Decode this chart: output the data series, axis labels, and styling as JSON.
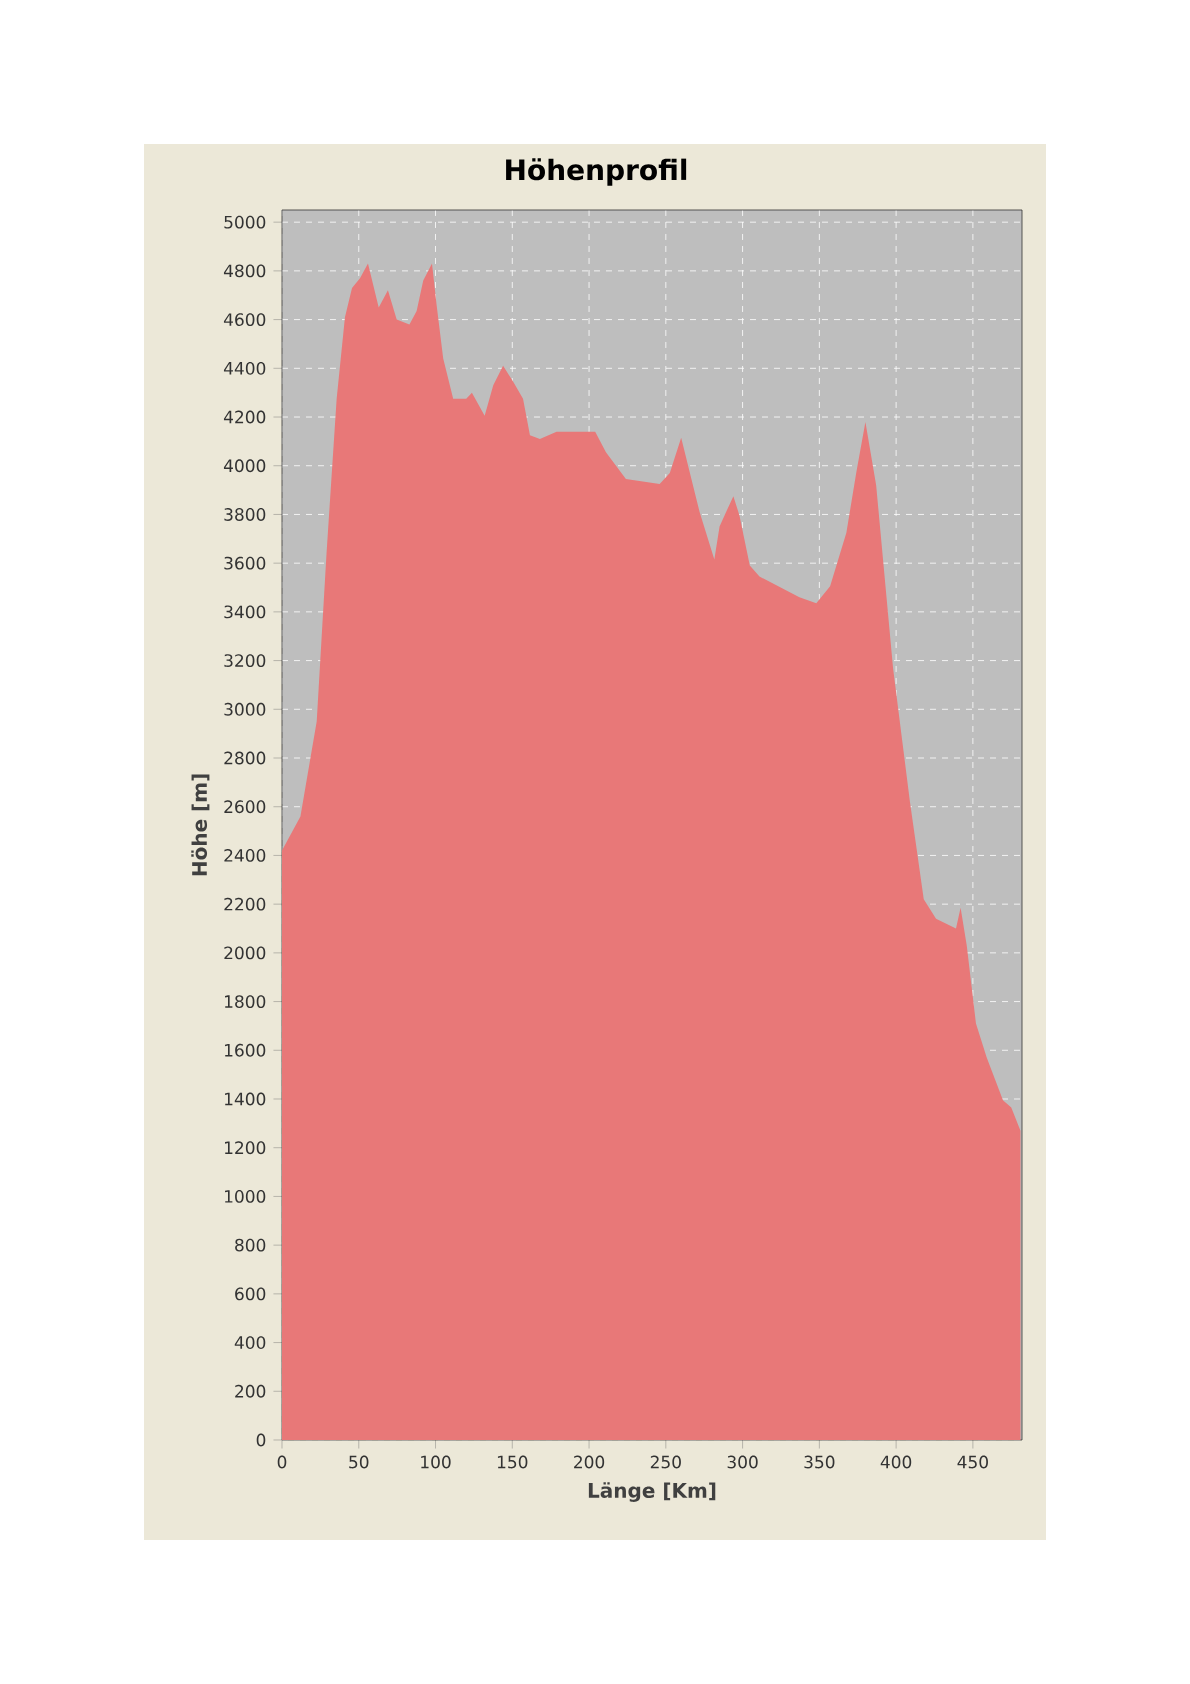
{
  "chart_data": {
    "type": "area",
    "title": "Höhenprofil",
    "xlabel": "Länge [Km]",
    "ylabel": "Höhe [m]",
    "x": [
      0,
      12,
      22.6,
      29,
      35.6,
      41,
      45.6,
      50.8,
      56,
      63,
      69,
      74.7,
      83,
      87.7,
      92,
      97.7,
      100.7,
      105,
      111.5,
      120,
      123.7,
      132,
      137.6,
      144,
      150.6,
      157,
      161.5,
      168,
      178.8,
      194,
      204,
      211,
      224,
      246,
      252.6,
      260,
      272,
      281.6,
      285,
      290,
      294,
      298,
      304.7,
      311,
      337,
      348,
      357,
      367.6,
      374,
      380,
      387,
      398,
      409,
      418,
      426,
      439,
      442,
      446,
      452,
      459,
      469.6,
      475,
      481
    ],
    "values": [
      2420,
      2560,
      2950,
      3640,
      4275,
      4610,
      4730,
      4770,
      4830,
      4650,
      4720,
      4600,
      4580,
      4635,
      4760,
      4830,
      4660,
      4440,
      4275,
      4275,
      4300,
      4205,
      4330,
      4410,
      4345,
      4275,
      4125,
      4110,
      4140,
      4140,
      4140,
      4055,
      3945,
      3925,
      3970,
      4115,
      3810,
      3615,
      3750,
      3820,
      3875,
      3795,
      3590,
      3545,
      3460,
      3435,
      3505,
      3725,
      3970,
      4180,
      3920,
      3170,
      2620,
      2220,
      2140,
      2100,
      2185,
      2030,
      1710,
      1570,
      1395,
      1365,
      1270
    ],
    "color": "#e87878",
    "xlim": [
      0,
      482
    ],
    "xticks": [
      0,
      50,
      100,
      150,
      200,
      250,
      300,
      350,
      400,
      450
    ],
    "ylim": [
      0,
      5050
    ],
    "yticks": [
      0,
      200,
      400,
      600,
      800,
      1000,
      1200,
      1400,
      1600,
      1800,
      2000,
      2200,
      2400,
      2600,
      2800,
      3000,
      3200,
      3400,
      3600,
      3800,
      4000,
      4200,
      4400,
      4600,
      4800,
      5000
    ],
    "grid": true
  }
}
